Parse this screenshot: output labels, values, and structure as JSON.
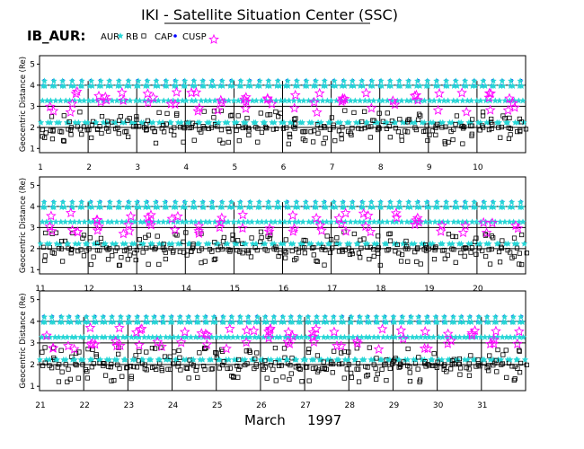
{
  "title": "IKI - Satellite Situation Center (SSC)",
  "id_label": "IB_AUR:",
  "legend": [
    {
      "label": "AUR",
      "marker": "star",
      "color": "#27d6d6"
    },
    {
      "label": "RB",
      "marker": "square",
      "color": "#000000"
    },
    {
      "label": "CAP",
      "marker": "dot",
      "color": "#0000ff"
    },
    {
      "label": "CUSP",
      "marker": "star-outline",
      "color": "#ff00ff"
    }
  ],
  "month_label": "March",
  "year_label": "1997",
  "chart_data": {
    "type": "scatter",
    "ylabel": "Geocentric Distance  (Re)",
    "ylim": [
      0.8,
      5.4
    ],
    "yticks": [
      1,
      2,
      3,
      4,
      5
    ],
    "grid_y": [
      2,
      3,
      4
    ],
    "panels": [
      {
        "day_start": 1,
        "day_end": 11,
        "day_labels": [
          "1",
          "2",
          "3",
          "4",
          "5",
          "6",
          "7",
          "8",
          "9",
          "10"
        ]
      },
      {
        "day_start": 11,
        "day_end": 21,
        "day_labels": [
          "11",
          "12",
          "13",
          "14",
          "15",
          "16",
          "17",
          "18",
          "19",
          "20"
        ]
      },
      {
        "day_start": 21,
        "day_end": 32,
        "day_labels": [
          "21",
          "22",
          "23",
          "24",
          "25",
          "26",
          "27",
          "28",
          "29",
          "30",
          "31"
        ]
      }
    ],
    "orbit": {
      "perigee_re": 1.0,
      "apogee_re": 4.2,
      "orbits_per_day": 5.2
    },
    "series": [
      {
        "name": "AUR",
        "color": "#27d6d6",
        "range_re": [
          1.0,
          4.2
        ]
      },
      {
        "name": "RB",
        "color": "#000000",
        "range_re": [
          1.2,
          3.3
        ]
      },
      {
        "name": "CAP",
        "color": "#0000ff",
        "range_re": [
          3.7,
          4.2
        ]
      },
      {
        "name": "CUSP",
        "color": "#ff00ff",
        "range_re": [
          2.5,
          3.9
        ]
      }
    ]
  }
}
